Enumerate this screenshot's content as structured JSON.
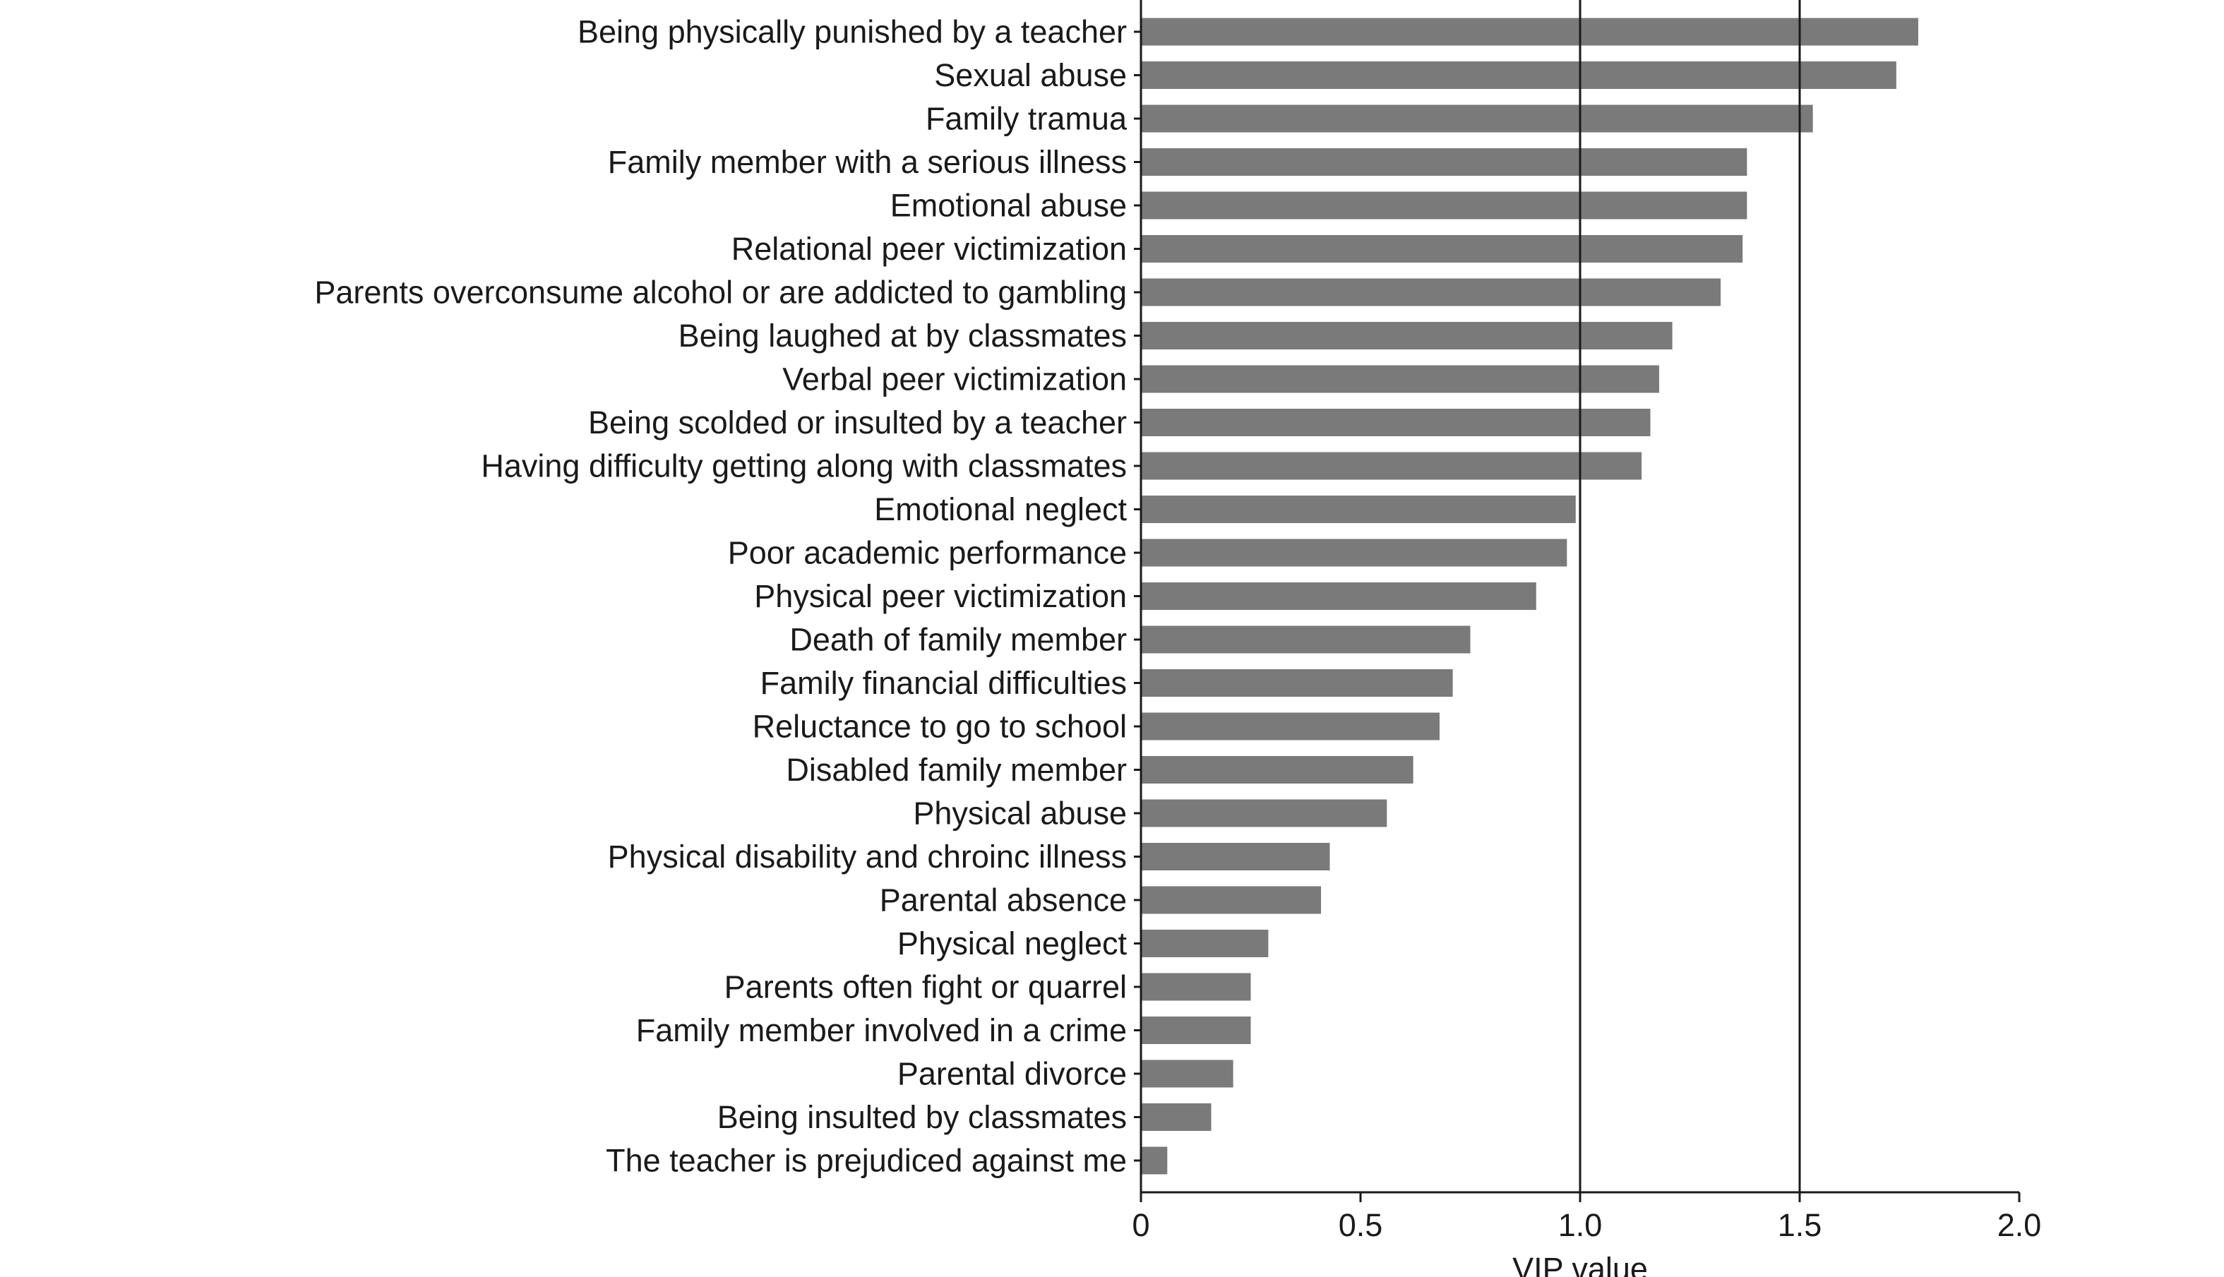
{
  "chart_data": {
    "type": "bar",
    "orientation": "horizontal",
    "title": "",
    "xlabel": "VIP value",
    "ylabel": "",
    "xlim": [
      0,
      2.0
    ],
    "x_ticks": [
      "0",
      "0.5",
      "1.0",
      "1.5",
      "2.0"
    ],
    "reference_lines": [
      1.0,
      1.5
    ],
    "grid": false,
    "legend": "none",
    "bar_color": "#7a7a7a",
    "axis_color": "#1a1a1a",
    "categories": [
      "Being physically punished by a teacher",
      "Sexual abuse",
      "Family tramua",
      "Family member with a serious illness",
      "Emotional abuse",
      "Relational peer victimization",
      "Parents overconsume alcohol or are addicted to gambling",
      "Being laughed at by classmates",
      "Verbal peer victimization",
      "Being scolded or insulted by a teacher",
      "Having difficulty getting along with classmates",
      "Emotional neglect",
      "Poor academic performance",
      "Physical peer victimization",
      "Death of family member",
      "Family financial difficulties",
      "Reluctance to go to school",
      "Disabled family member",
      "Physical abuse",
      "Physical disability and chroinc illness",
      "Parental absence",
      "Physical neglect",
      "Parents often fight or quarrel",
      "Family member involved in a crime",
      "Parental divorce",
      "Being insulted by classmates",
      "The teacher is prejudiced against me"
    ],
    "values": [
      1.77,
      1.72,
      1.53,
      1.38,
      1.38,
      1.37,
      1.32,
      1.21,
      1.18,
      1.16,
      1.14,
      0.99,
      0.97,
      0.9,
      0.75,
      0.71,
      0.68,
      0.62,
      0.56,
      0.43,
      0.41,
      0.29,
      0.25,
      0.25,
      0.21,
      0.16,
      0.06
    ]
  }
}
